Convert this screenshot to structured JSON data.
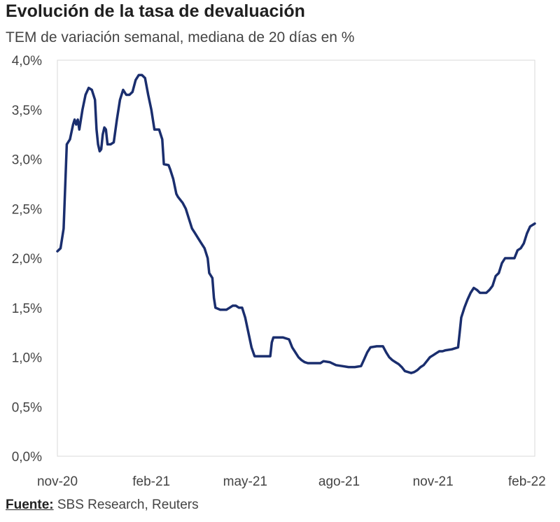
{
  "chart_data": {
    "type": "line",
    "title": "Evolución de la tasa de devaluación",
    "subtitle": "TEM de variación semanal, mediana de 20 días en %",
    "xlabel": "",
    "ylabel": "",
    "ylim": [
      0,
      4
    ],
    "y_ticks": [
      0,
      0.5,
      1,
      1.5,
      2,
      2.5,
      3,
      3.5,
      4
    ],
    "y_tick_labels": [
      "0,0%",
      "0,5%",
      "1,0%",
      "1,5%",
      "2,0%",
      "2,5%",
      "3,0%",
      "3,5%",
      "4,0%"
    ],
    "x_range": [
      0,
      15.25
    ],
    "x_unit": "months since nov-20",
    "x_ticks": [
      {
        "label": "nov-20",
        "x": 0
      },
      {
        "label": "feb-21",
        "x": 3
      },
      {
        "label": "may-21",
        "x": 6
      },
      {
        "label": "ago-21",
        "x": 9
      },
      {
        "label": "nov-21",
        "x": 12
      },
      {
        "label": "feb-22",
        "x": 15
      }
    ],
    "series": [
      {
        "name": "Tasa de devaluación",
        "color": "#1a2e6e",
        "points": [
          [
            0.0,
            2.07
          ],
          [
            0.1,
            2.1
          ],
          [
            0.2,
            2.3
          ],
          [
            0.3,
            3.15
          ],
          [
            0.4,
            3.2
          ],
          [
            0.5,
            3.35
          ],
          [
            0.55,
            3.4
          ],
          [
            0.6,
            3.35
          ],
          [
            0.65,
            3.4
          ],
          [
            0.7,
            3.3
          ],
          [
            0.8,
            3.5
          ],
          [
            0.9,
            3.65
          ],
          [
            1.0,
            3.72
          ],
          [
            1.1,
            3.7
          ],
          [
            1.2,
            3.6
          ],
          [
            1.25,
            3.3
          ],
          [
            1.3,
            3.15
          ],
          [
            1.35,
            3.08
          ],
          [
            1.4,
            3.1
          ],
          [
            1.45,
            3.25
          ],
          [
            1.5,
            3.32
          ],
          [
            1.55,
            3.3
          ],
          [
            1.6,
            3.15
          ],
          [
            1.7,
            3.15
          ],
          [
            1.8,
            3.17
          ],
          [
            1.9,
            3.4
          ],
          [
            2.0,
            3.6
          ],
          [
            2.1,
            3.7
          ],
          [
            2.2,
            3.65
          ],
          [
            2.3,
            3.65
          ],
          [
            2.4,
            3.68
          ],
          [
            2.5,
            3.8
          ],
          [
            2.6,
            3.85
          ],
          [
            2.7,
            3.85
          ],
          [
            2.8,
            3.82
          ],
          [
            2.9,
            3.65
          ],
          [
            3.0,
            3.5
          ],
          [
            3.1,
            3.3
          ],
          [
            3.25,
            3.3
          ],
          [
            3.35,
            3.2
          ],
          [
            3.4,
            2.95
          ],
          [
            3.55,
            2.94
          ],
          [
            3.6,
            2.9
          ],
          [
            3.7,
            2.8
          ],
          [
            3.8,
            2.65
          ],
          [
            3.85,
            2.62
          ],
          [
            3.95,
            2.58
          ],
          [
            4.0,
            2.56
          ],
          [
            4.1,
            2.5
          ],
          [
            4.2,
            2.4
          ],
          [
            4.3,
            2.3
          ],
          [
            4.4,
            2.25
          ],
          [
            4.5,
            2.2
          ],
          [
            4.6,
            2.15
          ],
          [
            4.7,
            2.1
          ],
          [
            4.8,
            2.0
          ],
          [
            4.85,
            1.85
          ],
          [
            4.95,
            1.8
          ],
          [
            5.0,
            1.6
          ],
          [
            5.05,
            1.5
          ],
          [
            5.2,
            1.48
          ],
          [
            5.4,
            1.48
          ],
          [
            5.5,
            1.5
          ],
          [
            5.6,
            1.52
          ],
          [
            5.7,
            1.52
          ],
          [
            5.8,
            1.5
          ],
          [
            5.9,
            1.5
          ],
          [
            6.0,
            1.4
          ],
          [
            6.1,
            1.25
          ],
          [
            6.2,
            1.1
          ],
          [
            6.3,
            1.01
          ],
          [
            6.5,
            1.01
          ],
          [
            6.8,
            1.01
          ],
          [
            6.85,
            1.15
          ],
          [
            6.9,
            1.2
          ],
          [
            7.2,
            1.2
          ],
          [
            7.4,
            1.18
          ],
          [
            7.5,
            1.1
          ],
          [
            7.6,
            1.05
          ],
          [
            7.7,
            1.0
          ],
          [
            7.8,
            0.97
          ],
          [
            7.9,
            0.95
          ],
          [
            8.0,
            0.94
          ],
          [
            8.4,
            0.94
          ],
          [
            8.5,
            0.96
          ],
          [
            8.7,
            0.95
          ],
          [
            8.9,
            0.92
          ],
          [
            9.1,
            0.91
          ],
          [
            9.3,
            0.9
          ],
          [
            9.5,
            0.9
          ],
          [
            9.7,
            0.91
          ],
          [
            9.8,
            0.98
          ],
          [
            9.9,
            1.05
          ],
          [
            10.0,
            1.1
          ],
          [
            10.2,
            1.11
          ],
          [
            10.4,
            1.11
          ],
          [
            10.5,
            1.05
          ],
          [
            10.6,
            1.0
          ],
          [
            10.7,
            0.97
          ],
          [
            10.8,
            0.95
          ],
          [
            10.9,
            0.93
          ],
          [
            11.0,
            0.9
          ],
          [
            11.1,
            0.86
          ],
          [
            11.2,
            0.85
          ],
          [
            11.3,
            0.84
          ],
          [
            11.4,
            0.85
          ],
          [
            11.5,
            0.87
          ],
          [
            11.6,
            0.9
          ],
          [
            11.7,
            0.92
          ],
          [
            11.8,
            0.96
          ],
          [
            11.9,
            1.0
          ],
          [
            12.0,
            1.02
          ],
          [
            12.1,
            1.04
          ],
          [
            12.2,
            1.06
          ],
          [
            12.3,
            1.06
          ],
          [
            12.4,
            1.07
          ],
          [
            12.6,
            1.08
          ],
          [
            12.8,
            1.1
          ],
          [
            12.85,
            1.25
          ],
          [
            12.9,
            1.4
          ],
          [
            13.0,
            1.5
          ],
          [
            13.1,
            1.58
          ],
          [
            13.2,
            1.65
          ],
          [
            13.3,
            1.7
          ],
          [
            13.4,
            1.68
          ],
          [
            13.5,
            1.65
          ],
          [
            13.7,
            1.65
          ],
          [
            13.8,
            1.68
          ],
          [
            13.9,
            1.72
          ],
          [
            14.0,
            1.82
          ],
          [
            14.1,
            1.85
          ],
          [
            14.2,
            1.95
          ],
          [
            14.3,
            2.0
          ],
          [
            14.6,
            2.0
          ],
          [
            14.7,
            2.08
          ],
          [
            14.8,
            2.1
          ],
          [
            14.9,
            2.15
          ],
          [
            15.0,
            2.25
          ],
          [
            15.1,
            2.32
          ],
          [
            15.25,
            2.35
          ]
        ]
      }
    ]
  },
  "source": {
    "label": "Fuente:",
    "text": " SBS Research, Reuters"
  }
}
